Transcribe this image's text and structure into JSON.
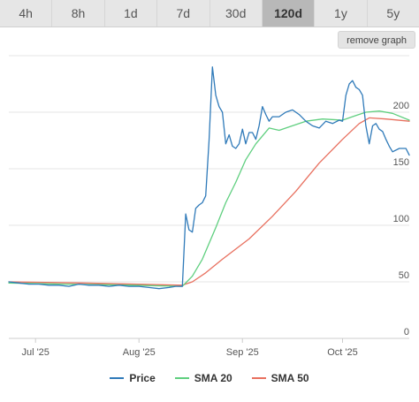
{
  "tabs": [
    {
      "label": "4h",
      "active": false
    },
    {
      "label": "8h",
      "active": false
    },
    {
      "label": "1d",
      "active": false
    },
    {
      "label": "7d",
      "active": false
    },
    {
      "label": "30d",
      "active": false
    },
    {
      "label": "120d",
      "active": true
    },
    {
      "label": "1y",
      "active": false
    },
    {
      "label": "5y",
      "active": false
    }
  ],
  "remove_graph_label": "remove graph",
  "chart_data": {
    "type": "line",
    "x_start": "2025-06-23",
    "x_end": "2025-10-21",
    "ylim": [
      0,
      250
    ],
    "yticks": [
      0,
      50,
      100,
      150,
      200
    ],
    "xticks": [
      {
        "label": "Jul '25",
        "date": "2025-07-01"
      },
      {
        "label": "Aug '25",
        "date": "2025-08-01"
      },
      {
        "label": "Sep '25",
        "date": "2025-09-01"
      },
      {
        "label": "Oct '25",
        "date": "2025-10-01"
      }
    ],
    "grid": true,
    "legend": "bottom",
    "series": [
      {
        "name": "Price",
        "color": "#2f7ab9",
        "points": [
          [
            "2025-06-23",
            50
          ],
          [
            "2025-06-26",
            49
          ],
          [
            "2025-06-29",
            48
          ],
          [
            "2025-07-02",
            48
          ],
          [
            "2025-07-05",
            47
          ],
          [
            "2025-07-08",
            47
          ],
          [
            "2025-07-11",
            46
          ],
          [
            "2025-07-14",
            48
          ],
          [
            "2025-07-17",
            47
          ],
          [
            "2025-07-20",
            47
          ],
          [
            "2025-07-23",
            46
          ],
          [
            "2025-07-26",
            47
          ],
          [
            "2025-07-29",
            46
          ],
          [
            "2025-08-01",
            46
          ],
          [
            "2025-08-04",
            45
          ],
          [
            "2025-08-07",
            44
          ],
          [
            "2025-08-10",
            45
          ],
          [
            "2025-08-12",
            46
          ],
          [
            "2025-08-14",
            46
          ],
          [
            "2025-08-15",
            110
          ],
          [
            "2025-08-16",
            96
          ],
          [
            "2025-08-17",
            94
          ],
          [
            "2025-08-18",
            115
          ],
          [
            "2025-08-19",
            118
          ],
          [
            "2025-08-20",
            120
          ],
          [
            "2025-08-21",
            126
          ],
          [
            "2025-08-22",
            175
          ],
          [
            "2025-08-23",
            240
          ],
          [
            "2025-08-24",
            215
          ],
          [
            "2025-08-25",
            205
          ],
          [
            "2025-08-26",
            200
          ],
          [
            "2025-08-27",
            172
          ],
          [
            "2025-08-28",
            180
          ],
          [
            "2025-08-29",
            170
          ],
          [
            "2025-08-30",
            168
          ],
          [
            "2025-08-31",
            172
          ],
          [
            "2025-09-01",
            185
          ],
          [
            "2025-09-02",
            172
          ],
          [
            "2025-09-03",
            182
          ],
          [
            "2025-09-04",
            182
          ],
          [
            "2025-09-05",
            176
          ],
          [
            "2025-09-06",
            188
          ],
          [
            "2025-09-07",
            205
          ],
          [
            "2025-09-08",
            198
          ],
          [
            "2025-09-09",
            192
          ],
          [
            "2025-09-10",
            196
          ],
          [
            "2025-09-12",
            196
          ],
          [
            "2025-09-14",
            200
          ],
          [
            "2025-09-16",
            202
          ],
          [
            "2025-09-18",
            198
          ],
          [
            "2025-09-20",
            192
          ],
          [
            "2025-09-22",
            188
          ],
          [
            "2025-09-24",
            186
          ],
          [
            "2025-09-26",
            192
          ],
          [
            "2025-09-28",
            190
          ],
          [
            "2025-09-30",
            193
          ],
          [
            "2025-10-01",
            192
          ],
          [
            "2025-10-02",
            215
          ],
          [
            "2025-10-03",
            225
          ],
          [
            "2025-10-04",
            228
          ],
          [
            "2025-10-05",
            222
          ],
          [
            "2025-10-06",
            220
          ],
          [
            "2025-10-07",
            215
          ],
          [
            "2025-10-08",
            188
          ],
          [
            "2025-10-09",
            172
          ],
          [
            "2025-10-10",
            188
          ],
          [
            "2025-10-11",
            190
          ],
          [
            "2025-10-12",
            185
          ],
          [
            "2025-10-13",
            183
          ],
          [
            "2025-10-14",
            176
          ],
          [
            "2025-10-15",
            170
          ],
          [
            "2025-10-16",
            165
          ],
          [
            "2025-10-18",
            168
          ],
          [
            "2025-10-20",
            168
          ],
          [
            "2025-10-21",
            162
          ]
        ]
      },
      {
        "name": "SMA 20",
        "color": "#5fcf7f",
        "points": [
          [
            "2025-06-23",
            49
          ],
          [
            "2025-07-10",
            48
          ],
          [
            "2025-07-30",
            47
          ],
          [
            "2025-08-14",
            46
          ],
          [
            "2025-08-17",
            55
          ],
          [
            "2025-08-20",
            70
          ],
          [
            "2025-08-24",
            98
          ],
          [
            "2025-08-27",
            120
          ],
          [
            "2025-08-30",
            138
          ],
          [
            "2025-09-02",
            158
          ],
          [
            "2025-09-05",
            172
          ],
          [
            "2025-09-09",
            186
          ],
          [
            "2025-09-12",
            184
          ],
          [
            "2025-09-15",
            187
          ],
          [
            "2025-09-20",
            192
          ],
          [
            "2025-09-25",
            194
          ],
          [
            "2025-10-01",
            193
          ],
          [
            "2025-10-05",
            197
          ],
          [
            "2025-10-08",
            200
          ],
          [
            "2025-10-12",
            201
          ],
          [
            "2025-10-16",
            199
          ],
          [
            "2025-10-21",
            193
          ]
        ]
      },
      {
        "name": "SMA 50",
        "color": "#e8705f",
        "points": [
          [
            "2025-06-23",
            50
          ],
          [
            "2025-07-15",
            49
          ],
          [
            "2025-08-14",
            47
          ],
          [
            "2025-08-17",
            50
          ],
          [
            "2025-08-21",
            58
          ],
          [
            "2025-08-26",
            70
          ],
          [
            "2025-09-03",
            88
          ],
          [
            "2025-09-10",
            108
          ],
          [
            "2025-09-17",
            130
          ],
          [
            "2025-09-24",
            155
          ],
          [
            "2025-10-01",
            176
          ],
          [
            "2025-10-06",
            190
          ],
          [
            "2025-10-09",
            195
          ],
          [
            "2025-10-14",
            194
          ],
          [
            "2025-10-21",
            192
          ]
        ]
      }
    ]
  }
}
